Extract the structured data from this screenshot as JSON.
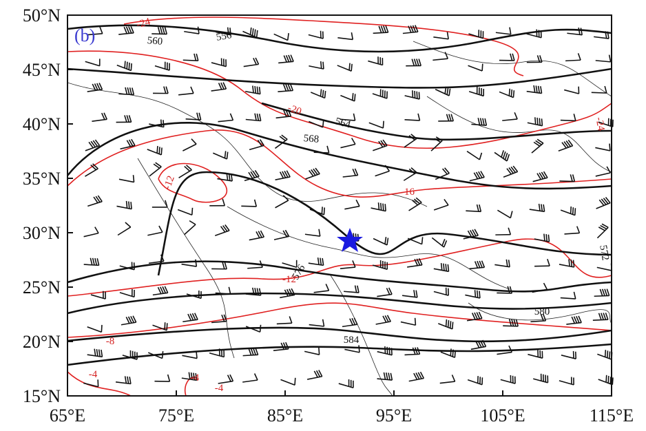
{
  "panel_label": "(b)",
  "x_axis": {
    "ticks": [
      "65°E",
      "75°E",
      "85°E",
      "95°E",
      "105°E",
      "115°E"
    ]
  },
  "y_axis": {
    "ticks": [
      "15°N",
      "20°N",
      "25°N",
      "30°N",
      "35°N",
      "40°N",
      "45°N",
      "50°N"
    ]
  },
  "height_contour_labels": [
    "556",
    "560",
    "564",
    "568",
    "572",
    "576",
    "580",
    "584"
  ],
  "temperature_contour_labels": [
    "-24",
    "-20",
    "-16",
    "-12",
    "-8",
    "-4",
    "-4",
    "-4",
    "-24",
    "-12"
  ]
}
